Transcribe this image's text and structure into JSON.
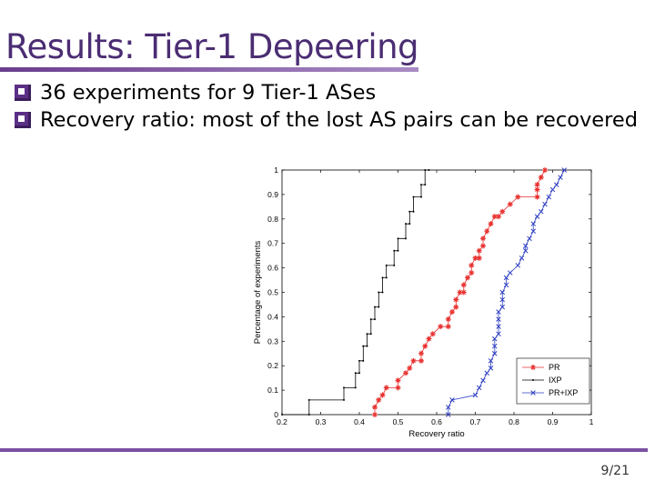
{
  "slide": {
    "title": "Results: Tier-1 Depeering",
    "bullets": [
      "36 experiments for 9 Tier-1 ASes",
      "Recovery ratio: most of the lost AS pairs can be recovered"
    ],
    "page": "9/21"
  },
  "colors": {
    "title": "#4b2d73",
    "accent": "#7a50a3",
    "pr": "#e8312f",
    "ixp": "#000000",
    "pr_ixp": "#2e3ec2"
  },
  "chart_data": {
    "type": "line",
    "title": "",
    "xlabel": "Recovery ratio",
    "ylabel": "Percentage of experiments",
    "xlim": [
      0.2,
      1
    ],
    "ylim": [
      0,
      1
    ],
    "x_ticks": [
      "0.2",
      "0.3",
      "0.4",
      "0.5",
      "0.6",
      "0.7",
      "0.8",
      "0.9",
      "1"
    ],
    "y_ticks": [
      "0",
      "0.1",
      "0.2",
      "0.3",
      "0.4",
      "0.5",
      "0.6",
      "0.7",
      "0.8",
      "0.9",
      "1"
    ],
    "legend_position": "bottom-right",
    "series": [
      {
        "name": "PR",
        "marker": "*",
        "points": [
          [
            0.44,
            0.0
          ],
          [
            0.44,
            0.03
          ],
          [
            0.45,
            0.06
          ],
          [
            0.46,
            0.08
          ],
          [
            0.47,
            0.11
          ],
          [
            0.5,
            0.11
          ],
          [
            0.5,
            0.14
          ],
          [
            0.52,
            0.17
          ],
          [
            0.53,
            0.19
          ],
          [
            0.54,
            0.22
          ],
          [
            0.56,
            0.22
          ],
          [
            0.56,
            0.25
          ],
          [
            0.57,
            0.28
          ],
          [
            0.58,
            0.31
          ],
          [
            0.59,
            0.33
          ],
          [
            0.61,
            0.36
          ],
          [
            0.63,
            0.36
          ],
          [
            0.63,
            0.39
          ],
          [
            0.64,
            0.42
          ],
          [
            0.65,
            0.44
          ],
          [
            0.65,
            0.47
          ],
          [
            0.66,
            0.5
          ],
          [
            0.67,
            0.5
          ],
          [
            0.67,
            0.53
          ],
          [
            0.68,
            0.56
          ],
          [
            0.69,
            0.58
          ],
          [
            0.69,
            0.61
          ],
          [
            0.7,
            0.64
          ],
          [
            0.71,
            0.64
          ],
          [
            0.71,
            0.67
          ],
          [
            0.72,
            0.69
          ],
          [
            0.72,
            0.72
          ],
          [
            0.73,
            0.75
          ],
          [
            0.74,
            0.78
          ],
          [
            0.75,
            0.81
          ],
          [
            0.76,
            0.81
          ],
          [
            0.77,
            0.83
          ],
          [
            0.79,
            0.86
          ],
          [
            0.81,
            0.89
          ],
          [
            0.86,
            0.89
          ],
          [
            0.86,
            0.92
          ],
          [
            0.86,
            0.94
          ],
          [
            0.87,
            0.97
          ],
          [
            0.88,
            1.0
          ]
        ]
      },
      {
        "name": "IXP",
        "marker": ".",
        "points": [
          [
            0.2,
            0.0
          ],
          [
            0.27,
            0.0
          ],
          [
            0.27,
            0.06
          ],
          [
            0.36,
            0.06
          ],
          [
            0.36,
            0.11
          ],
          [
            0.39,
            0.11
          ],
          [
            0.39,
            0.17
          ],
          [
            0.4,
            0.17
          ],
          [
            0.4,
            0.22
          ],
          [
            0.41,
            0.22
          ],
          [
            0.41,
            0.28
          ],
          [
            0.42,
            0.28
          ],
          [
            0.42,
            0.33
          ],
          [
            0.43,
            0.33
          ],
          [
            0.43,
            0.39
          ],
          [
            0.44,
            0.39
          ],
          [
            0.44,
            0.44
          ],
          [
            0.45,
            0.44
          ],
          [
            0.45,
            0.5
          ],
          [
            0.46,
            0.5
          ],
          [
            0.46,
            0.56
          ],
          [
            0.47,
            0.56
          ],
          [
            0.47,
            0.61
          ],
          [
            0.49,
            0.61
          ],
          [
            0.49,
            0.67
          ],
          [
            0.5,
            0.67
          ],
          [
            0.5,
            0.72
          ],
          [
            0.52,
            0.72
          ],
          [
            0.52,
            0.78
          ],
          [
            0.53,
            0.78
          ],
          [
            0.53,
            0.83
          ],
          [
            0.54,
            0.83
          ],
          [
            0.54,
            0.89
          ],
          [
            0.56,
            0.89
          ],
          [
            0.56,
            0.94
          ],
          [
            0.57,
            0.94
          ],
          [
            0.57,
            1.0
          ],
          [
            0.58,
            1.0
          ]
        ]
      },
      {
        "name": "PR+IXP",
        "marker": "x",
        "points": [
          [
            0.63,
            0.0
          ],
          [
            0.63,
            0.03
          ],
          [
            0.64,
            0.06
          ],
          [
            0.7,
            0.08
          ],
          [
            0.71,
            0.11
          ],
          [
            0.72,
            0.14
          ],
          [
            0.73,
            0.17
          ],
          [
            0.74,
            0.19
          ],
          [
            0.74,
            0.22
          ],
          [
            0.75,
            0.25
          ],
          [
            0.75,
            0.28
          ],
          [
            0.75,
            0.31
          ],
          [
            0.76,
            0.33
          ],
          [
            0.76,
            0.36
          ],
          [
            0.76,
            0.39
          ],
          [
            0.76,
            0.42
          ],
          [
            0.77,
            0.44
          ],
          [
            0.77,
            0.47
          ],
          [
            0.77,
            0.5
          ],
          [
            0.78,
            0.53
          ],
          [
            0.78,
            0.56
          ],
          [
            0.79,
            0.58
          ],
          [
            0.81,
            0.61
          ],
          [
            0.82,
            0.64
          ],
          [
            0.83,
            0.67
          ],
          [
            0.83,
            0.69
          ],
          [
            0.84,
            0.72
          ],
          [
            0.85,
            0.75
          ],
          [
            0.85,
            0.78
          ],
          [
            0.86,
            0.81
          ],
          [
            0.87,
            0.83
          ],
          [
            0.88,
            0.86
          ],
          [
            0.89,
            0.89
          ],
          [
            0.9,
            0.92
          ],
          [
            0.91,
            0.94
          ],
          [
            0.92,
            0.97
          ],
          [
            0.93,
            1.0
          ]
        ]
      }
    ]
  }
}
